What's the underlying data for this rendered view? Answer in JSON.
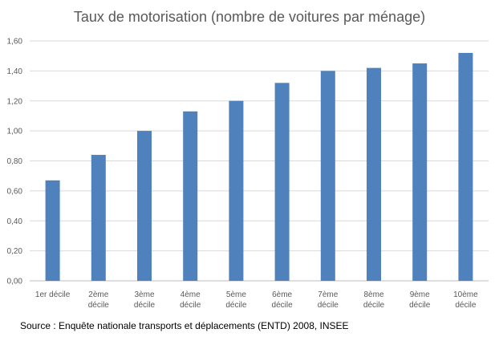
{
  "chart_data": {
    "type": "bar",
    "title": "Taux de motorisation (nombre de voitures par ménage)",
    "xlabel": "",
    "ylabel": "",
    "ylim": [
      0,
      1.6
    ],
    "y_ticks": [
      "0,00",
      "0,20",
      "0,40",
      "0,60",
      "0,80",
      "1,00",
      "1,20",
      "1,40",
      "1,60"
    ],
    "categories": [
      [
        "1er décile"
      ],
      [
        "2ème",
        "décile"
      ],
      [
        "3ème",
        "décile"
      ],
      [
        "4ème",
        "décile"
      ],
      [
        "5ème",
        "décile"
      ],
      [
        "6ème",
        "décile"
      ],
      [
        "7ème",
        "décile"
      ],
      [
        "8ème",
        "décile"
      ],
      [
        "9ème",
        "décile"
      ],
      [
        "10ème",
        "décile"
      ]
    ],
    "values": [
      0.67,
      0.84,
      1.0,
      1.13,
      1.2,
      1.32,
      1.4,
      1.42,
      1.45,
      1.52
    ],
    "bar_color": "#4f81bd",
    "grid": true,
    "grid_color": "#d9d9d9",
    "axis_color": "#bfbfbf",
    "source": "Source : Enquête nationale transports et déplacements (ENTD) 2008, INSEE"
  }
}
